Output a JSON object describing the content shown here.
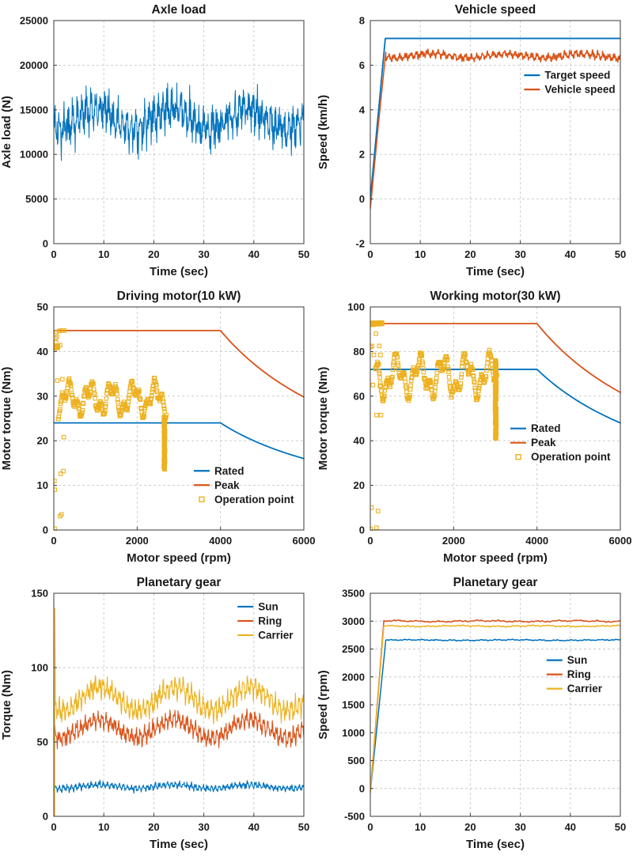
{
  "figure": {
    "background": "#ffffff",
    "rows": 3,
    "cols": 2
  },
  "colors": {
    "blue": "#0072BD",
    "orange": "#D95319",
    "yellow": "#EDB120",
    "axis": "#3a3a3a",
    "grid_line": "#c8c8c8",
    "text": "#1a1a1a",
    "background": "#ffffff"
  },
  "chart_data": [
    {
      "id": "axle-load",
      "type": "line",
      "title": "Axle load",
      "xlabel": "Time (sec)",
      "ylabel": "Axle load (N)",
      "xlim": [
        0,
        50
      ],
      "ylim": [
        0,
        25000
      ],
      "xticks": [
        0,
        10,
        20,
        30,
        40,
        50
      ],
      "yticks": [
        0,
        5000,
        10000,
        15000,
        20000,
        25000
      ],
      "grid": "dashed",
      "legend": null,
      "series": [
        {
          "name": "Axle load",
          "color": "blue",
          "width": 1,
          "gen": {
            "kind": "noisy",
            "x0": 0,
            "x1": 50,
            "n": 760,
            "mean": 14000,
            "slow": [
              1150,
              15,
              -1.99
            ],
            "comps": [
              [
                1150,
                0.9
              ],
              [
                850,
                0.23
              ]
            ],
            "jitter": 1900,
            "observed_min": 8300,
            "observed_max": 20400
          }
        }
      ]
    },
    {
      "id": "vehicle-speed",
      "type": "line",
      "title": "Vehicle speed",
      "xlabel": "Time (sec)",
      "ylabel": "Speed (km/h)",
      "xlim": [
        0,
        50
      ],
      "ylim": [
        -2,
        8
      ],
      "xticks": [
        0,
        10,
        20,
        30,
        40,
        50
      ],
      "yticks": [
        -2,
        0,
        2,
        4,
        6,
        8
      ],
      "grid": "dashed",
      "legend": {
        "fx": 0.615,
        "fy": 0.245,
        "entries": [
          {
            "label": "Target speed",
            "swatch": "line",
            "color": "blue"
          },
          {
            "label": "Vehicle speed",
            "swatch": "line",
            "color": "orange"
          }
        ]
      },
      "series": [
        {
          "name": "Target speed",
          "color": "blue",
          "width": 1.8,
          "gen": {
            "kind": "segments",
            "points": [
              [
                0,
                0
              ],
              [
                3,
                7.2
              ],
              [
                50,
                7.2
              ]
            ]
          }
        },
        {
          "name": "Vehicle speed",
          "color": "orange",
          "width": 1.5,
          "gen": {
            "kind": "noisy",
            "lead": [
              [
                0,
                -0.45
              ],
              [
                1.6,
                3.3
              ],
              [
                3.1,
                6.58
              ]
            ],
            "x0": 3.1,
            "x1": 50,
            "n": 650,
            "mean": 6.42,
            "slow": [
              0.09,
              15,
              -2.2
            ],
            "comps": [
              [
                0.1,
                1.1
              ],
              [
                0.07,
                0.35
              ]
            ],
            "jitter": 0.1,
            "observed_min": 5.95,
            "observed_max": 6.65
          }
        }
      ]
    },
    {
      "id": "driving-motor",
      "type": "mixed",
      "title": "Driving motor(10 kW)",
      "xlabel": "Motor speed (rpm)",
      "ylabel": "Motor torque (Nm)",
      "xlim": [
        0,
        6000
      ],
      "ylim": [
        0,
        50
      ],
      "xticks": [
        0,
        2000,
        4000,
        6000
      ],
      "yticks": [
        0,
        10,
        20,
        30,
        40,
        50
      ],
      "grid": "dashed",
      "legend": {
        "fx": 0.56,
        "fy": 0.735,
        "entries": [
          {
            "label": "Rated",
            "swatch": "line",
            "color": "blue"
          },
          {
            "label": "Peak",
            "swatch": "line",
            "color": "orange"
          },
          {
            "label": "Operation point",
            "swatch": "marker",
            "color": "yellow"
          }
        ]
      },
      "series": [
        {
          "name": "Rated",
          "color": "blue",
          "width": 1.8,
          "gen": {
            "kind": "flat_power",
            "flat": 24,
            "corner": 4000,
            "xend": 6000,
            "end_value": 16
          }
        },
        {
          "name": "Peak",
          "color": "orange",
          "width": 1.8,
          "gen": {
            "kind": "flat_power",
            "flat": 44.7,
            "corner": 4000,
            "xend": 6000,
            "end_value": 29.8
          }
        },
        {
          "name": "Operation point",
          "type": "scatter",
          "marker": "square",
          "marker_size": 4.5,
          "color": "yellow",
          "parts": [
            {
              "kind": "wave",
              "x0": 110,
              "x1": 2700,
              "step": 10,
              "mean": 29.4,
              "comps": [
                [
                  2.7,
                  520
                ],
                [
                  1.6,
                  185
                ]
              ],
              "jitter": 0.7,
              "band_min": 24.5,
              "band_max": 34.5
            },
            {
              "kind": "vline",
              "x": 2655,
              "y0": 13.6,
              "y1": 25.4,
              "n": 80,
              "jx": 15
            },
            {
              "kind": "hline",
              "y": 41,
              "x0": 0,
              "x1": 100,
              "n": 26,
              "jy": 0.35
            },
            {
              "kind": "points",
              "pts": [
                [
                  20,
                  0.3
                ],
                [
                  150,
                  3.1
                ],
                [
                  185,
                  3.5
                ],
                [
                  25,
                  9
                ],
                [
                  15,
                  11
                ],
                [
                  165,
                  12.6
                ],
                [
                  230,
                  13.2
                ],
                [
                  240,
                  20.8
                ],
                [
                  85,
                  33.5
                ],
                [
                  205,
                  33.8
                ],
                [
                  55,
                  42
                ],
                [
                  40,
                  43
                ],
                [
                  75,
                  43.3
                ],
                [
                  60,
                  44.4
                ],
                [
                  130,
                  44.6
                ],
                [
                  175,
                  44.7
                ],
                [
                  215,
                  44.7
                ],
                [
                  255,
                  44.7
                ],
                [
                  95,
                  41.2
                ],
                [
                  150,
                  41.4
                ]
              ]
            }
          ]
        }
      ]
    },
    {
      "id": "working-motor",
      "type": "mixed",
      "title": "Working motor(30 kW)",
      "xlabel": "Motor speed (rpm)",
      "ylabel": "Motor torque (Nm)",
      "xlim": [
        0,
        6000
      ],
      "ylim": [
        0,
        100
      ],
      "xticks": [
        0,
        2000,
        4000,
        6000
      ],
      "yticks": [
        0,
        20,
        40,
        60,
        80,
        100
      ],
      "grid": "dashed",
      "legend": {
        "fx": 0.56,
        "fy": 0.545,
        "entries": [
          {
            "label": "Rated",
            "swatch": "line",
            "color": "blue"
          },
          {
            "label": "Peak",
            "swatch": "line",
            "color": "orange"
          },
          {
            "label": "Operation point",
            "swatch": "marker",
            "color": "yellow"
          }
        ]
      },
      "series": [
        {
          "name": "Rated",
          "color": "blue",
          "width": 1.8,
          "gen": {
            "kind": "flat_power",
            "flat": 72,
            "corner": 4000,
            "xend": 6000,
            "end_value": 48
          }
        },
        {
          "name": "Peak",
          "color": "orange",
          "width": 1.8,
          "gen": {
            "kind": "flat_power",
            "flat": 92.5,
            "corner": 4000,
            "xend": 6000,
            "end_value": 61.7
          }
        },
        {
          "name": "Operation point",
          "type": "scatter",
          "marker": "square",
          "marker_size": 4.5,
          "color": "yellow",
          "parts": [
            {
              "kind": "wave",
              "x0": 120,
              "x1": 3040,
              "step": 10,
              "mean": 69,
              "comps": [
                [
                  7,
                  560
                ],
                [
                  4,
                  205
                ]
              ],
              "jitter": 1.6,
              "band_min": 54,
              "band_max": 86
            },
            {
              "kind": "vline",
              "x": 3010,
              "y0": 41,
              "y1": 76,
              "n": 110,
              "jx": 18
            },
            {
              "kind": "hline",
              "y": 92.5,
              "x0": 0,
              "x1": 285,
              "n": 40,
              "jy": 0.5
            },
            {
              "kind": "points",
              "pts": [
                [
                  10,
                  0.5
                ],
                [
                  150,
                  1
                ],
                [
                  30,
                  10
                ],
                [
                  185,
                  8.5
                ],
                [
                  150,
                  51.5
                ],
                [
                  255,
                  51.5
                ],
                [
                  5,
                  82
                ],
                [
                  40,
                  82.5
                ],
                [
                  215,
                  82.5
                ],
                [
                  135,
                  88
                ],
                [
                  85,
                  78.5
                ],
                [
                  245,
                  78.5
                ],
                [
                  60,
                  65
                ],
                [
                  230,
                  64.5
                ]
              ]
            }
          ]
        }
      ]
    },
    {
      "id": "planetary-gear-torque",
      "type": "line",
      "title": "Planetary gear",
      "xlabel": "Time (sec)",
      "ylabel": "Torque (Nm)",
      "xlim": [
        0,
        50
      ],
      "ylim": [
        0,
        150
      ],
      "xticks": [
        0,
        10,
        20,
        30,
        40,
        50
      ],
      "yticks": [
        0,
        50,
        100,
        150
      ],
      "grid": "dashed",
      "legend": {
        "fx": 0.735,
        "fy": 0.06,
        "entries": [
          {
            "label": "Sun",
            "swatch": "line",
            "color": "blue"
          },
          {
            "label": "Ring",
            "swatch": "line",
            "color": "orange"
          },
          {
            "label": "Carrier",
            "swatch": "line",
            "color": "yellow"
          }
        ]
      },
      "series": [
        {
          "name": "Sun",
          "color": "blue",
          "width": 1.1,
          "gen": {
            "kind": "noisy",
            "x0": 0,
            "x1": 50,
            "n": 650,
            "mean": 20,
            "slow": [
              1.2,
              15,
              -2.2
            ],
            "comps": [
              [
                1.4,
                0.8
              ],
              [
                1.0,
                0.3
              ]
            ],
            "jitter": 1.4,
            "observed_min": 15,
            "observed_max": 25
          }
        },
        {
          "name": "Ring",
          "color": "orange",
          "width": 1.1,
          "gen": {
            "kind": "noisy",
            "x0": 0,
            "x1": 50,
            "n": 650,
            "mean": 59,
            "slow": [
              6,
              15,
              -2.2
            ],
            "comps": [
              [
                3.5,
                0.85
              ],
              [
                2.5,
                0.32
              ]
            ],
            "jitter": 3.2,
            "observed_min": 43,
            "observed_max": 77
          }
        },
        {
          "name": "Carrier",
          "color": "yellow",
          "width": 1.1,
          "gen": {
            "kind": "noisy",
            "lead": [
              [
                0.18,
                0
              ],
              [
                0.22,
                140
              ],
              [
                0.3,
                92
              ]
            ],
            "x0": 0.3,
            "x1": 50,
            "n": 650,
            "mean": 79,
            "slow": [
              8,
              15,
              -2.2
            ],
            "comps": [
              [
                4.5,
                0.8
              ],
              [
                3.0,
                0.33
              ]
            ],
            "jitter": 4,
            "observed_min": 60,
            "observed_max": 101,
            "startup_spike": 140
          }
        }
      ]
    },
    {
      "id": "planetary-gear-speed",
      "type": "line",
      "title": "Planetary gear",
      "xlabel": "Time (sec)",
      "ylabel": "Speed (rpm)",
      "xlim": [
        0,
        50
      ],
      "ylim": [
        -500,
        3500
      ],
      "xticks": [
        0,
        10,
        20,
        30,
        40,
        50
      ],
      "yticks": [
        -500,
        0,
        500,
        1000,
        1500,
        2000,
        2500,
        3000,
        3500
      ],
      "grid": "dashed",
      "legend": {
        "fx": 0.705,
        "fy": 0.3,
        "entries": [
          {
            "label": "Sun",
            "swatch": "line",
            "color": "blue"
          },
          {
            "label": "Ring",
            "swatch": "line",
            "color": "orange"
          },
          {
            "label": "Carrier",
            "swatch": "line",
            "color": "yellow"
          }
        ]
      },
      "series": [
        {
          "name": "Sun",
          "color": "blue",
          "width": 1.5,
          "gen": {
            "kind": "noisy",
            "lead": [
              [
                0,
                -70
              ],
              [
                3.1,
                2660
              ]
            ],
            "x0": 3.1,
            "x1": 50,
            "n": 400,
            "mean": 2660,
            "slow": [
              5,
              20,
              0
            ],
            "comps": [
              [
                5,
                3
              ],
              [
                4,
                0.9
              ]
            ],
            "jitter": 6,
            "steady_value": 2660
          }
        },
        {
          "name": "Ring",
          "color": "orange",
          "width": 1.5,
          "gen": {
            "kind": "noisy",
            "lead": [
              [
                0,
                -70
              ],
              [
                2.7,
                3000
              ]
            ],
            "x0": 2.7,
            "x1": 50,
            "n": 400,
            "mean": 3000,
            "slow": [
              8,
              18,
              1
            ],
            "comps": [
              [
                8,
                4
              ],
              [
                5,
                1.1
              ]
            ],
            "jitter": 8,
            "steady_value": 3000
          }
        },
        {
          "name": "Carrier",
          "color": "yellow",
          "width": 1.5,
          "gen": {
            "kind": "noisy",
            "lead": [
              [
                0,
                -70
              ],
              [
                2.7,
                2912
              ]
            ],
            "x0": 2.7,
            "x1": 50,
            "n": 400,
            "mean": 2912,
            "slow": [
              7,
              16,
              2
            ],
            "comps": [
              [
                6,
                3.5
              ],
              [
                5,
                1.0
              ]
            ],
            "jitter": 7,
            "steady_value": 2912
          }
        }
      ]
    }
  ]
}
